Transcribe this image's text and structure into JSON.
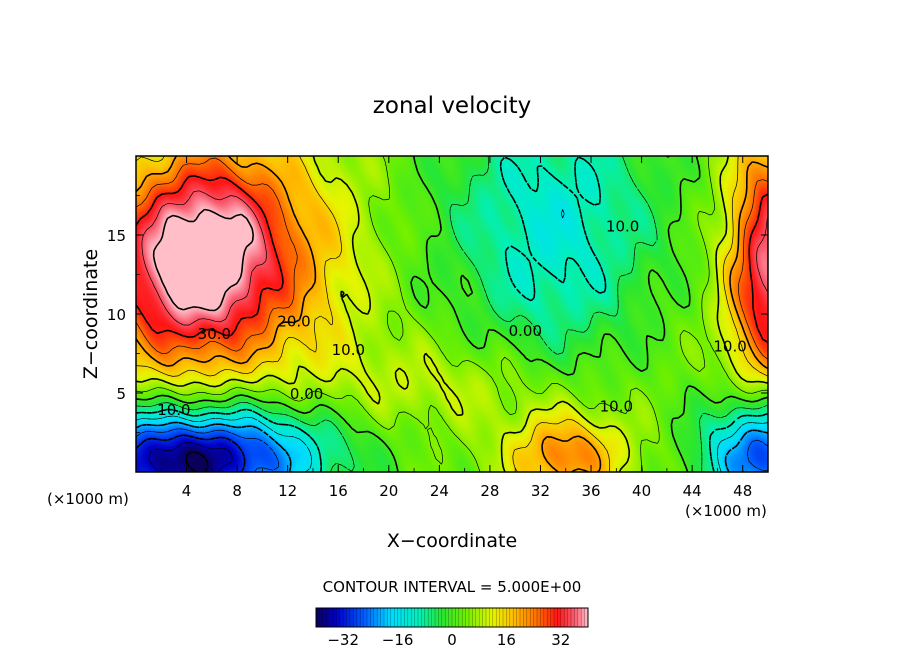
{
  "chart_data": {
    "type": "heatmap",
    "title": "zonal velocity",
    "xlabel": "X−coordinate",
    "ylabel": "Z−coordinate",
    "x_unit_left": "(×1000 m)",
    "x_unit_right": "(×1000 m)",
    "x_range": [
      0,
      50
    ],
    "y_range": [
      0,
      20
    ],
    "x_ticks": [
      4,
      8,
      12,
      16,
      20,
      24,
      28,
      32,
      36,
      40,
      44,
      48
    ],
    "y_ticks": [
      5,
      10,
      15
    ],
    "contour_interval_text": "CONTOUR INTERVAL = 5.000E+00",
    "contour_interval": 5,
    "colorbar": {
      "range": [
        -40,
        40
      ],
      "ticks": [
        -32,
        -16,
        0,
        16,
        32
      ]
    },
    "contour_labels": [
      {
        "text": "30.0",
        "x": 6.2,
        "y": 8.7
      },
      {
        "text": "20.0",
        "x": 12.5,
        "y": 9.5
      },
      {
        "text": "10.0",
        "x": 16.8,
        "y": 7.7
      },
      {
        "text": "0.00",
        "x": 13.5,
        "y": 4.9
      },
      {
        "text": "10.0",
        "x": 3.0,
        "y": 3.9
      },
      {
        "text": "0.00",
        "x": 30.8,
        "y": 8.9
      },
      {
        "text": "10.0",
        "x": 38.0,
        "y": 4.1
      },
      {
        "text": "10.0",
        "x": 38.5,
        "y": 15.5
      },
      {
        "text": "10.0",
        "x": 47.0,
        "y": 7.9
      }
    ],
    "field_features": [
      {
        "name": "upper-left jet",
        "x": 4.3,
        "y": 12.8,
        "value": 38,
        "sx": 5.2,
        "sy": 4.6
      },
      {
        "name": "upper-left upper band",
        "x": 7,
        "y": 16.5,
        "value": 10,
        "sx": 4,
        "sy": 4
      },
      {
        "name": "mid-upper band",
        "x": 14,
        "y": 13,
        "value": 8,
        "sx": 4,
        "sy": 6
      },
      {
        "name": "lower-left jet",
        "x": 3.5,
        "y": 0.6,
        "value": -42,
        "sx": 7.5,
        "sy": 2.3
      },
      {
        "name": "lower-left tail",
        "x": 9,
        "y": 2.5,
        "value": -6,
        "sx": 6,
        "sy": 2
      },
      {
        "name": "upper-center jet",
        "x": 33,
        "y": 16.5,
        "value": -16,
        "sx": 6.5,
        "sy": 5.5
      },
      {
        "name": "upper-center extension",
        "x": 33,
        "y": 10,
        "value": -4,
        "sx": 4,
        "sy": 3
      },
      {
        "name": "bottom-center jet",
        "x": 34,
        "y": 1,
        "value": 20,
        "sx": 3.2,
        "sy": 1.9
      },
      {
        "name": "right jet",
        "x": 50.2,
        "y": 13,
        "value": 34,
        "sx": 2.4,
        "sy": 6
      },
      {
        "name": "lower-right jet",
        "x": 49.8,
        "y": 1.2,
        "value": -36,
        "sx": 3.3,
        "sy": 2.6
      },
      {
        "name": "center trough",
        "x": 24,
        "y": 5.5,
        "value": 6,
        "sx": 6,
        "sy": 2
      }
    ]
  }
}
